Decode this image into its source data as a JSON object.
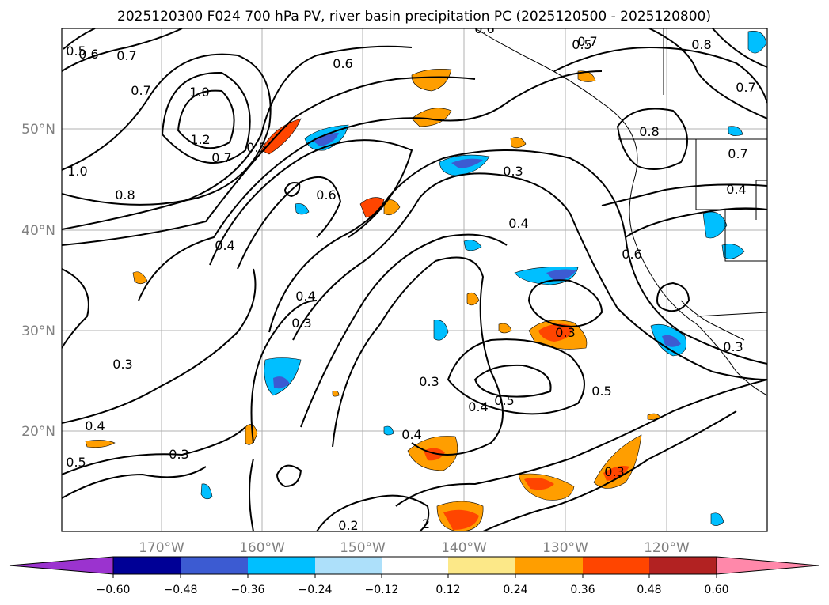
{
  "title": "2025120300 F024 700 hPa PV, river basin precipitation PC (2025120500 - 2025120800)",
  "colors": {
    "tick_label": "#808080",
    "grid": "#b0b0b0",
    "contour": "#000000",
    "coast": "#000000"
  },
  "lat_labels": [
    "50°N",
    "40°N",
    "30°N",
    "20°N"
  ],
  "lon_labels": [
    "170°W",
    "160°W",
    "150°W",
    "140°W",
    "130°W",
    "120°W"
  ],
  "colorbar": {
    "colors": [
      "#9b33cf",
      "#000096",
      "#3c5bd2",
      "#00bfff",
      "#ade0fa",
      "#ffffff",
      "#fce888",
      "#ff9e00",
      "#ff4500",
      "#b22222",
      "#ff88aa"
    ],
    "tick_labels": [
      "−0.60",
      "−0.48",
      "−0.36",
      "−0.24",
      "−0.12",
      "0.12",
      "0.24",
      "0.36",
      "0.48",
      "0.60"
    ]
  },
  "contour_labels": [
    "0.5",
    "0.6",
    "0.7",
    "0.7",
    "1.0",
    "1.2",
    "1.0",
    "0.7",
    "0.5",
    "0.8",
    "0.4",
    "0.3",
    "0.6",
    "0.7",
    "0.5",
    "0.8",
    "0.7",
    "0.8",
    "0.6",
    "0.3",
    "0.4",
    "0.6",
    "0.4",
    "0.3",
    "0.3",
    "0.3",
    "0.5",
    "0.5",
    "0.3",
    "0.4",
    "0.4",
    "0.3",
    "0.5",
    "0.4",
    "0.2",
    "2",
    "0.7",
    "0.4",
    "0.3",
    "0.6"
  ]
}
